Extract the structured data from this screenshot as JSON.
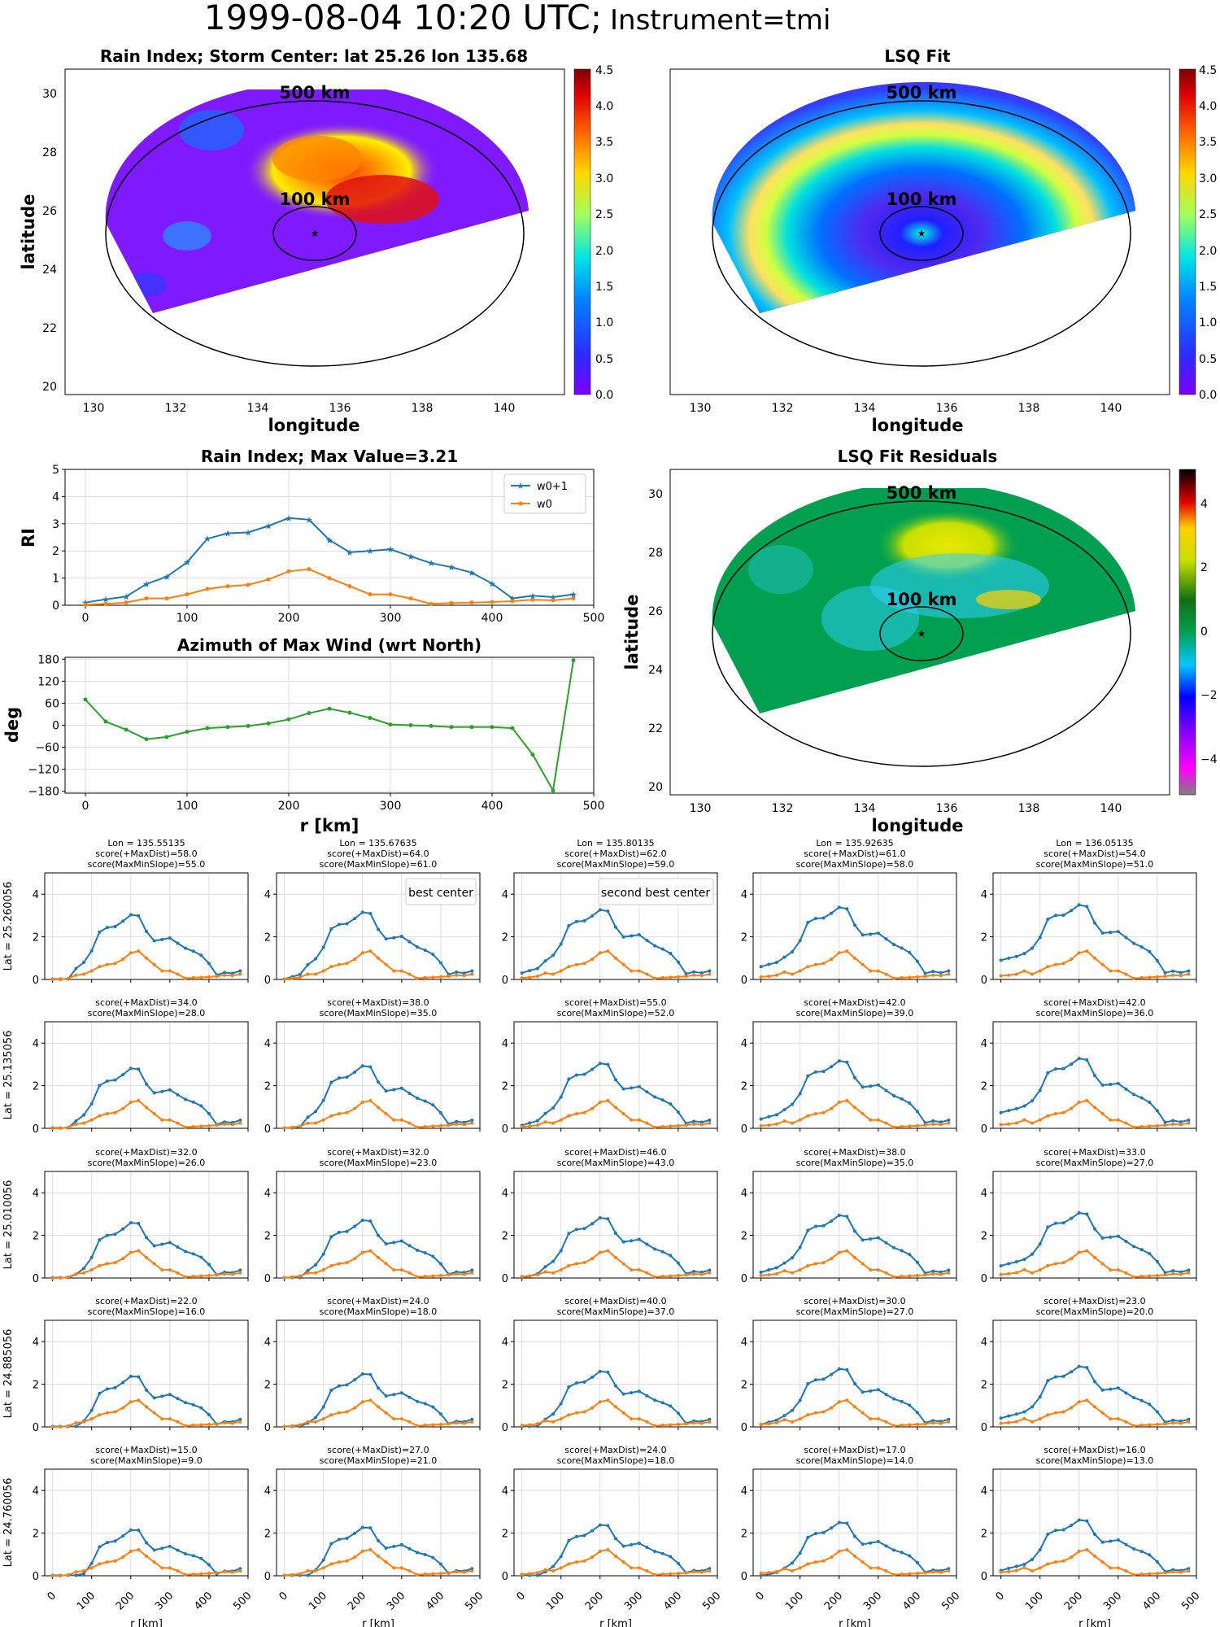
{
  "suptitle": "1999-08-04 10:20 UTC;",
  "suptitle_instr": "Instrument=tmi",
  "colors": {
    "w0p1": "#1f77b4",
    "w0": "#ff7f0e",
    "azimuth": "#2ca02c",
    "purple": "#800080",
    "red": "#ff0000",
    "grid": "#dddddd"
  },
  "maps": {
    "rain_title": "Rain Index; Storm Center: lat 25.26 lon 135.68",
    "lsq_title": "LSQ Fit",
    "resid_title": "LSQ Fit Residuals",
    "xlabel": "longitude",
    "ylabel": "latitude",
    "xticks": [
      "130",
      "132",
      "134",
      "136",
      "138",
      "140"
    ],
    "yticks": [
      "20",
      "22",
      "24",
      "26",
      "28",
      "30"
    ],
    "ring_outer": "500 km",
    "ring_inner": "100 km",
    "cbar_ticks": [
      "0.0",
      "0.5",
      "1.0",
      "1.5",
      "2.0",
      "2.5",
      "3.0",
      "3.5",
      "4.0",
      "4.5"
    ],
    "resid_cbar_ticks": [
      "4",
      "2",
      "0",
      "−2",
      "−4"
    ]
  },
  "chart_data": [
    {
      "type": "line",
      "id": "rain_index_profile",
      "title": "Rain Index; Max Value=3.21",
      "ylabel": "RI",
      "xlim": [
        -20,
        500
      ],
      "ylim": [
        0,
        5
      ],
      "xticks": [
        "0",
        "100",
        "200",
        "300",
        "400",
        "500"
      ],
      "yticks": [
        "0",
        "1",
        "2",
        "3",
        "4",
        "5"
      ],
      "x": [
        0,
        20,
        40,
        60,
        80,
        100,
        120,
        140,
        160,
        180,
        200,
        220,
        240,
        260,
        280,
        300,
        320,
        340,
        360,
        380,
        400,
        420,
        440,
        460,
        480
      ],
      "series": [
        {
          "name": "w0+1",
          "values": [
            0.1,
            0.22,
            0.32,
            0.78,
            1.05,
            1.58,
            2.45,
            2.65,
            2.68,
            2.92,
            3.21,
            3.15,
            2.4,
            1.95,
            2.0,
            2.06,
            1.8,
            1.55,
            1.4,
            1.2,
            0.8,
            0.25,
            0.35,
            0.3,
            0.4
          ]
        },
        {
          "name": "w0",
          "values": [
            0.02,
            0.05,
            0.1,
            0.25,
            0.25,
            0.4,
            0.6,
            0.7,
            0.75,
            0.95,
            1.25,
            1.33,
            1.0,
            0.7,
            0.4,
            0.4,
            0.25,
            0.05,
            0.08,
            0.1,
            0.12,
            0.15,
            0.2,
            0.18,
            0.25
          ]
        }
      ]
    },
    {
      "type": "line",
      "id": "azimuth_profile",
      "title": "Azimuth of Max Wind (wrt North)",
      "xlabel": "r [km]",
      "ylabel": "deg",
      "xlim": [
        -20,
        500
      ],
      "ylim": [
        -185,
        185
      ],
      "xticks": [
        "0",
        "100",
        "200",
        "300",
        "400",
        "500"
      ],
      "yticks": [
        "180",
        "120",
        "60",
        "0",
        "−60",
        "−120",
        "−180"
      ],
      "x": [
        0,
        20,
        40,
        60,
        80,
        100,
        120,
        140,
        160,
        180,
        200,
        220,
        240,
        260,
        280,
        300,
        320,
        340,
        360,
        380,
        400,
        420,
        440,
        460,
        480
      ],
      "series": [
        {
          "values": [
            70,
            10,
            -12,
            -38,
            -32,
            -18,
            -8,
            -5,
            -2,
            5,
            16,
            33,
            45,
            34,
            20,
            2,
            0,
            -2,
            -5,
            -5,
            -5,
            -8,
            -80,
            -178,
            177
          ]
        }
      ]
    },
    {
      "type": "line",
      "id": "grid_profiles",
      "xlabel": "r [km]",
      "xlim": [
        -20,
        500
      ],
      "ylim": [
        0,
        5
      ],
      "xticks": [
        "0",
        "100",
        "200",
        "300",
        "400",
        "500"
      ],
      "yticks": [
        "0",
        "2",
        "4"
      ],
      "x": [
        0,
        20,
        40,
        60,
        80,
        100,
        120,
        140,
        160,
        180,
        200,
        220,
        240,
        260,
        280,
        300,
        320,
        340,
        360,
        380,
        400,
        420,
        440,
        460,
        480
      ],
      "cols": [
        {
          "lon_label": "Lon = 135.55135",
          "color": "#000000"
        },
        {
          "lon_label": "Lon = 135.67635",
          "color": "#800080"
        },
        {
          "lon_label": "Lon = 135.80135",
          "color": "#ff0000"
        },
        {
          "lon_label": "Lon = 135.92635",
          "color": "#000000"
        },
        {
          "lon_label": "Lon = 136.05135",
          "color": "#000000"
        }
      ],
      "rows": [
        {
          "lat_label": "Lat = 25.260056",
          "scores": [
            [
              "score(+MaxDist)=58.0",
              "score(MaxMinSlope)=55.0"
            ],
            [
              "score(+MaxDist)=64.0",
              "score(MaxMinSlope)=61.0"
            ],
            [
              "score(+MaxDist)=62.0",
              "score(MaxMinSlope)=59.0"
            ],
            [
              "score(+MaxDist)=61.0",
              "score(MaxMinSlope)=58.0"
            ],
            [
              "score(+MaxDist)=54.0",
              "score(MaxMinSlope)=51.0"
            ]
          ]
        },
        {
          "lat_label": "Lat = 25.135056",
          "scores": [
            [
              "score(+MaxDist)=34.0",
              "score(MaxMinSlope)=28.0"
            ],
            [
              "score(+MaxDist)=38.0",
              "score(MaxMinSlope)=35.0"
            ],
            [
              "score(+MaxDist)=55.0",
              "score(MaxMinSlope)=52.0"
            ],
            [
              "score(+MaxDist)=42.0",
              "score(MaxMinSlope)=39.0"
            ],
            [
              "score(+MaxDist)=42.0",
              "score(MaxMinSlope)=36.0"
            ]
          ]
        },
        {
          "lat_label": "Lat = 25.010056",
          "scores": [
            [
              "score(+MaxDist)=32.0",
              "score(MaxMinSlope)=26.0"
            ],
            [
              "score(+MaxDist)=32.0",
              "score(MaxMinSlope)=23.0"
            ],
            [
              "score(+MaxDist)=46.0",
              "score(MaxMinSlope)=43.0"
            ],
            [
              "score(+MaxDist)=38.0",
              "score(MaxMinSlope)=35.0"
            ],
            [
              "score(+MaxDist)=33.0",
              "score(MaxMinSlope)=27.0"
            ]
          ]
        },
        {
          "lat_label": "Lat = 24.885056",
          "scores": [
            [
              "score(+MaxDist)=22.0",
              "score(MaxMinSlope)=16.0"
            ],
            [
              "score(+MaxDist)=24.0",
              "score(MaxMinSlope)=18.0"
            ],
            [
              "score(+MaxDist)=40.0",
              "score(MaxMinSlope)=37.0"
            ],
            [
              "score(+MaxDist)=30.0",
              "score(MaxMinSlope)=27.0"
            ],
            [
              "score(+MaxDist)=23.0",
              "score(MaxMinSlope)=20.0"
            ]
          ]
        },
        {
          "lat_label": "Lat = 24.760056",
          "scores": [
            [
              "score(+MaxDist)=15.0",
              "score(MaxMinSlope)=9.0"
            ],
            [
              "score(+MaxDist)=27.0",
              "score(MaxMinSlope)=21.0"
            ],
            [
              "score(+MaxDist)=24.0",
              "score(MaxMinSlope)=18.0"
            ],
            [
              "score(+MaxDist)=17.0",
              "score(MaxMinSlope)=14.0"
            ],
            [
              "score(+MaxDist)=16.0",
              "score(MaxMinSlope)=13.0"
            ]
          ]
        }
      ],
      "annotations": {
        "best": "best center",
        "second": "second best center"
      }
    }
  ]
}
